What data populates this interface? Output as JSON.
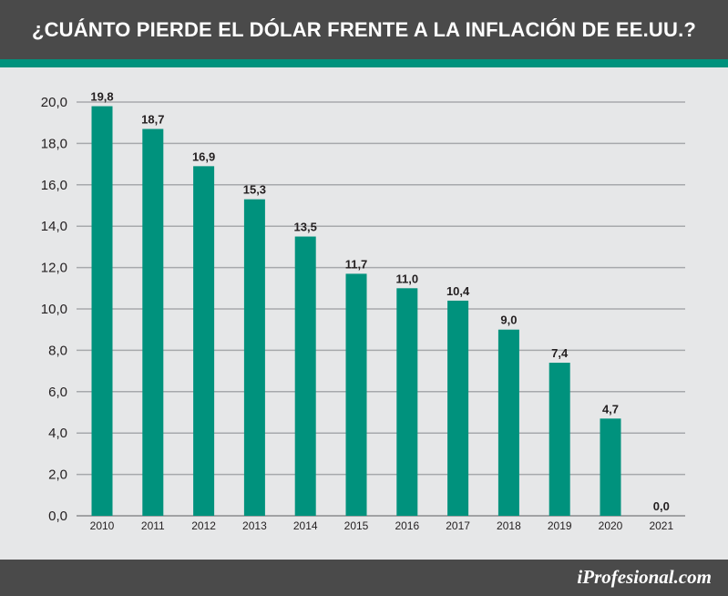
{
  "header": {
    "title": "¿CUÁNTO PIERDE EL DÓLAR FRENTE A LA INFLACIÓN DE EE.UU.?"
  },
  "footer": {
    "brand": "iProfesional.com"
  },
  "colors": {
    "bar": "#00927d",
    "header_bg": "#4a4a4a",
    "background": "#e6e7e8",
    "grid": "#a7a9ac"
  },
  "chart_data": {
    "type": "bar",
    "title": "¿CUÁNTO PIERDE EL DÓLAR FRENTE A LA INFLACIÓN DE EE.UU.?",
    "categories": [
      "2010",
      "2011",
      "2012",
      "2013",
      "2014",
      "2015",
      "2016",
      "2017",
      "2018",
      "2019",
      "2020",
      "2021"
    ],
    "values": [
      19.8,
      18.7,
      16.9,
      15.3,
      13.5,
      11.7,
      11.0,
      10.4,
      9.0,
      7.4,
      4.7,
      0.0
    ],
    "value_labels": [
      "19,8",
      "18,7",
      "16,9",
      "15,3",
      "13,5",
      "11,7",
      "11,0",
      "10,4",
      "9,0",
      "7,4",
      "4,7",
      "0,0"
    ],
    "ylim": [
      0,
      20
    ],
    "yticks": [
      0,
      2,
      4,
      6,
      8,
      10,
      12,
      14,
      16,
      18,
      20
    ],
    "ytick_labels": [
      "0,0",
      "2,0",
      "4,0",
      "6,0",
      "8,0",
      "10,0",
      "12,0",
      "14,0",
      "16,0",
      "18,0",
      "20,0"
    ],
    "xlabel": "",
    "ylabel": "",
    "grid": true,
    "legend": "none"
  }
}
